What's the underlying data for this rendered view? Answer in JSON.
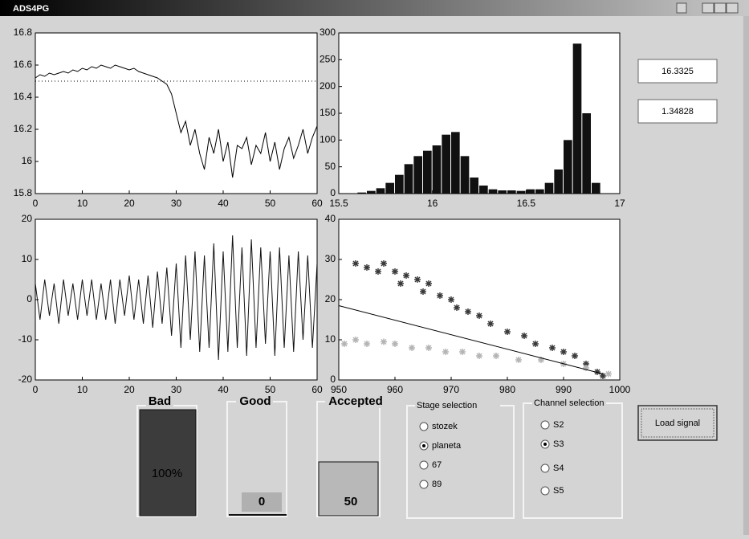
{
  "window": {
    "title": "ADS4PG"
  },
  "chart_data": [
    {
      "type": "line",
      "xlim": [
        0,
        60
      ],
      "xticks": [
        0,
        10,
        20,
        30,
        40,
        50,
        60
      ],
      "ylim": [
        15.8,
        16.8
      ],
      "yticks": [
        15.8,
        16,
        16.2,
        16.4,
        16.6,
        16.8
      ],
      "color": "#000000",
      "reference_line": 16.5,
      "x": [
        0,
        1,
        2,
        3,
        4,
        5,
        6,
        7,
        8,
        9,
        10,
        11,
        12,
        13,
        14,
        15,
        16,
        17,
        18,
        19,
        20,
        21,
        22,
        23,
        24,
        25,
        26,
        27,
        28,
        29,
        30,
        31,
        32,
        33,
        34,
        35,
        36,
        37,
        38,
        39,
        40,
        41,
        42,
        43,
        44,
        45,
        46,
        47,
        48,
        49,
        50,
        51,
        52,
        53,
        54,
        55,
        56,
        57,
        58,
        59,
        60
      ],
      "values": [
        16.52,
        16.54,
        16.53,
        16.55,
        16.54,
        16.55,
        16.56,
        16.55,
        16.57,
        16.56,
        16.58,
        16.57,
        16.59,
        16.58,
        16.6,
        16.59,
        16.58,
        16.6,
        16.59,
        16.58,
        16.57,
        16.58,
        16.56,
        16.55,
        16.54,
        16.53,
        16.52,
        16.5,
        16.48,
        16.42,
        16.3,
        16.18,
        16.25,
        16.1,
        16.2,
        16.05,
        15.95,
        16.15,
        16.05,
        16.2,
        16,
        16.12,
        15.9,
        16.1,
        16.08,
        16.15,
        15.98,
        16.1,
        16.05,
        16.18,
        16,
        16.12,
        15.95,
        16.08,
        16.15,
        16.02,
        16.1,
        16.2,
        16.05,
        16.15,
        16.22
      ]
    },
    {
      "type": "histogram",
      "xlim": [
        15.5,
        17
      ],
      "xticks": [
        15.5,
        16,
        16.5,
        17
      ],
      "ylim": [
        0,
        300
      ],
      "yticks": [
        0,
        50,
        100,
        150,
        200,
        250,
        300
      ],
      "color": "#111111",
      "bins": [
        15.6,
        15.65,
        15.7,
        15.75,
        15.8,
        15.85,
        15.9,
        15.95,
        16,
        16.05,
        16.1,
        16.15,
        16.2,
        16.25,
        16.3,
        16.35,
        16.4,
        16.45,
        16.5,
        16.55,
        16.6,
        16.65,
        16.7,
        16.75,
        16.8,
        16.85,
        16.9
      ],
      "values": [
        2,
        5,
        10,
        20,
        35,
        55,
        70,
        80,
        90,
        110,
        115,
        70,
        30,
        15,
        8,
        6,
        6,
        5,
        8,
        8,
        20,
        45,
        100,
        280,
        150,
        20
      ]
    },
    {
      "type": "line",
      "xlim": [
        0,
        60
      ],
      "xticks": [
        0,
        10,
        20,
        30,
        40,
        50,
        60
      ],
      "ylim": [
        -20,
        20
      ],
      "yticks": [
        -20,
        -10,
        0,
        10,
        20
      ],
      "color": "#111111",
      "x": [
        0,
        1,
        2,
        3,
        4,
        5,
        6,
        7,
        8,
        9,
        10,
        11,
        12,
        13,
        14,
        15,
        16,
        17,
        18,
        19,
        20,
        21,
        22,
        23,
        24,
        25,
        26,
        27,
        28,
        29,
        30,
        31,
        32,
        33,
        34,
        35,
        36,
        37,
        38,
        39,
        40,
        41,
        42,
        43,
        44,
        45,
        46,
        47,
        48,
        49,
        50,
        51,
        52,
        53,
        54,
        55,
        56,
        57,
        58,
        59,
        60
      ],
      "values": [
        4,
        -5,
        5,
        -4,
        4,
        -6,
        5,
        -4,
        4,
        -5,
        5,
        -4,
        5,
        -5,
        4,
        -5,
        5,
        -6,
        5,
        -4,
        6,
        -5,
        5,
        -6,
        6,
        -7,
        7,
        -6,
        8,
        -9,
        9,
        -12,
        11,
        -10,
        12,
        -13,
        11,
        -12,
        14,
        -15,
        12,
        -13,
        16,
        -12,
        13,
        -14,
        15,
        -12,
        13,
        -11,
        12,
        -14,
        13,
        -12,
        11,
        -13,
        12,
        -10,
        11,
        -12,
        9
      ]
    },
    {
      "type": "scatter",
      "xlim": [
        950,
        1000
      ],
      "xticks": [
        950,
        960,
        970,
        980,
        990,
        1000
      ],
      "ylim": [
        0,
        40
      ],
      "yticks": [
        0,
        10,
        20,
        30,
        40
      ],
      "series": [
        {
          "color": "#3a3a3a",
          "x": [
            953,
            955,
            957,
            958,
            960,
            961,
            962,
            964,
            965,
            966,
            968,
            970,
            971,
            973,
            975,
            977,
            980,
            983,
            985,
            988,
            990,
            992,
            994,
            996,
            997
          ],
          "y": [
            29,
            28,
            27,
            29,
            27,
            24,
            26,
            25,
            22,
            24,
            21,
            20,
            18,
            17,
            16,
            14,
            12,
            11,
            9,
            8,
            7,
            6,
            4,
            2,
            1
          ]
        },
        {
          "color": "#b4b4b4",
          "x": [
            951,
            953,
            955,
            958,
            960,
            963,
            966,
            969,
            972,
            975,
            978,
            982,
            986,
            990,
            994,
            998
          ],
          "y": [
            9,
            10,
            9,
            9.5,
            9,
            8,
            8,
            7,
            7,
            6,
            6,
            5,
            5,
            4,
            3,
            1.5
          ]
        }
      ],
      "fit_line": {
        "color": "#000000",
        "x": [
          950,
          997
        ],
        "y": [
          18.5,
          1.5
        ]
      }
    }
  ],
  "outputs": [
    "16.3325",
    "1.34828"
  ],
  "gauges": [
    {
      "title": "Bad",
      "label": "100%"
    },
    {
      "title": "Good",
      "label": "0"
    },
    {
      "title": "Accepted",
      "label": "50"
    }
  ],
  "stage_selection": {
    "title": "Stage selection",
    "options": [
      "stozek",
      "planeta",
      "67",
      "89"
    ],
    "selected": 1
  },
  "channel_selection": {
    "title": "Channel selection",
    "options": [
      "S2",
      "S3",
      "S4",
      "S5"
    ],
    "selected": 1
  },
  "button": {
    "label": "Load signal"
  }
}
